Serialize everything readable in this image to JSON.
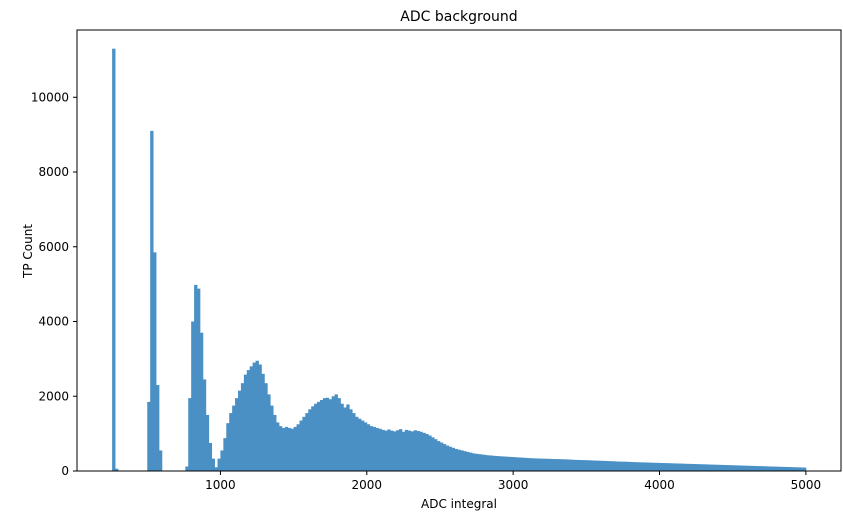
{
  "chart_data": {
    "type": "bar",
    "title": "ADC background",
    "xlabel": "ADC integral",
    "ylabel": "TP Count",
    "xlim": [
      20,
      5240
    ],
    "ylim": [
      0,
      11800
    ],
    "xticks": [
      1000,
      2000,
      3000,
      4000,
      5000
    ],
    "yticks": [
      0,
      2000,
      4000,
      6000,
      8000,
      10000
    ],
    "grid": false,
    "legend": "none",
    "bar_color": "#4a90c4",
    "bin_width": 20,
    "bins": [
      {
        "x": 260,
        "y": 11300
      },
      {
        "x": 280,
        "y": 60
      },
      {
        "x": 500,
        "y": 1850
      },
      {
        "x": 520,
        "y": 9100
      },
      {
        "x": 540,
        "y": 5850
      },
      {
        "x": 560,
        "y": 2300
      },
      {
        "x": 580,
        "y": 550
      },
      {
        "x": 760,
        "y": 120
      },
      {
        "x": 780,
        "y": 1950
      },
      {
        "x": 800,
        "y": 4000
      },
      {
        "x": 820,
        "y": 4980
      },
      {
        "x": 840,
        "y": 4880
      },
      {
        "x": 860,
        "y": 3700
      },
      {
        "x": 880,
        "y": 2450
      },
      {
        "x": 900,
        "y": 1500
      },
      {
        "x": 920,
        "y": 750
      },
      {
        "x": 940,
        "y": 330
      },
      {
        "x": 960,
        "y": 100
      },
      {
        "x": 980,
        "y": 330
      },
      {
        "x": 1000,
        "y": 550
      },
      {
        "x": 1020,
        "y": 880
      },
      {
        "x": 1040,
        "y": 1280
      },
      {
        "x": 1060,
        "y": 1550
      },
      {
        "x": 1080,
        "y": 1750
      },
      {
        "x": 1100,
        "y": 1950
      },
      {
        "x": 1120,
        "y": 2150
      },
      {
        "x": 1140,
        "y": 2350
      },
      {
        "x": 1160,
        "y": 2580
      },
      {
        "x": 1180,
        "y": 2700
      },
      {
        "x": 1200,
        "y": 2800
      },
      {
        "x": 1220,
        "y": 2900
      },
      {
        "x": 1240,
        "y": 2950
      },
      {
        "x": 1260,
        "y": 2850
      },
      {
        "x": 1280,
        "y": 2600
      },
      {
        "x": 1300,
        "y": 2350
      },
      {
        "x": 1320,
        "y": 2050
      },
      {
        "x": 1340,
        "y": 1750
      },
      {
        "x": 1360,
        "y": 1500
      },
      {
        "x": 1380,
        "y": 1300
      },
      {
        "x": 1400,
        "y": 1200
      },
      {
        "x": 1420,
        "y": 1150
      },
      {
        "x": 1440,
        "y": 1180
      },
      {
        "x": 1460,
        "y": 1150
      },
      {
        "x": 1480,
        "y": 1130
      },
      {
        "x": 1500,
        "y": 1180
      },
      {
        "x": 1520,
        "y": 1250
      },
      {
        "x": 1540,
        "y": 1350
      },
      {
        "x": 1560,
        "y": 1450
      },
      {
        "x": 1580,
        "y": 1550
      },
      {
        "x": 1600,
        "y": 1650
      },
      {
        "x": 1620,
        "y": 1730
      },
      {
        "x": 1640,
        "y": 1800
      },
      {
        "x": 1660,
        "y": 1850
      },
      {
        "x": 1680,
        "y": 1900
      },
      {
        "x": 1700,
        "y": 1950
      },
      {
        "x": 1720,
        "y": 1960
      },
      {
        "x": 1740,
        "y": 1920
      },
      {
        "x": 1760,
        "y": 2000
      },
      {
        "x": 1780,
        "y": 2050
      },
      {
        "x": 1800,
        "y": 1950
      },
      {
        "x": 1820,
        "y": 1800
      },
      {
        "x": 1840,
        "y": 1700
      },
      {
        "x": 1860,
        "y": 1780
      },
      {
        "x": 1880,
        "y": 1650
      },
      {
        "x": 1900,
        "y": 1550
      },
      {
        "x": 1920,
        "y": 1450
      },
      {
        "x": 1940,
        "y": 1400
      },
      {
        "x": 1960,
        "y": 1350
      },
      {
        "x": 1980,
        "y": 1300
      },
      {
        "x": 2000,
        "y": 1250
      },
      {
        "x": 2020,
        "y": 1200
      },
      {
        "x": 2040,
        "y": 1180
      },
      {
        "x": 2060,
        "y": 1150
      },
      {
        "x": 2080,
        "y": 1130
      },
      {
        "x": 2100,
        "y": 1100
      },
      {
        "x": 2120,
        "y": 1080
      },
      {
        "x": 2140,
        "y": 1110
      },
      {
        "x": 2160,
        "y": 1080
      },
      {
        "x": 2180,
        "y": 1060
      },
      {
        "x": 2200,
        "y": 1090
      },
      {
        "x": 2220,
        "y": 1120
      },
      {
        "x": 2240,
        "y": 1050
      },
      {
        "x": 2260,
        "y": 1100
      },
      {
        "x": 2280,
        "y": 1080
      },
      {
        "x": 2300,
        "y": 1060
      },
      {
        "x": 2320,
        "y": 1090
      },
      {
        "x": 2340,
        "y": 1070
      },
      {
        "x": 2360,
        "y": 1050
      },
      {
        "x": 2380,
        "y": 1020
      },
      {
        "x": 2400,
        "y": 990
      },
      {
        "x": 2420,
        "y": 950
      },
      {
        "x": 2440,
        "y": 900
      },
      {
        "x": 2460,
        "y": 850
      },
      {
        "x": 2480,
        "y": 800
      },
      {
        "x": 2500,
        "y": 760
      },
      {
        "x": 2520,
        "y": 720
      },
      {
        "x": 2540,
        "y": 680
      },
      {
        "x": 2560,
        "y": 650
      },
      {
        "x": 2580,
        "y": 620
      },
      {
        "x": 2600,
        "y": 590
      },
      {
        "x": 2620,
        "y": 570
      },
      {
        "x": 2640,
        "y": 550
      },
      {
        "x": 2660,
        "y": 530
      },
      {
        "x": 2680,
        "y": 510
      },
      {
        "x": 2700,
        "y": 490
      },
      {
        "x": 2720,
        "y": 470
      },
      {
        "x": 2740,
        "y": 460
      },
      {
        "x": 2760,
        "y": 450
      },
      {
        "x": 2780,
        "y": 440
      },
      {
        "x": 2800,
        "y": 430
      },
      {
        "x": 2820,
        "y": 420
      },
      {
        "x": 2840,
        "y": 415
      },
      {
        "x": 2860,
        "y": 405
      },
      {
        "x": 2880,
        "y": 400
      },
      {
        "x": 2900,
        "y": 395
      },
      {
        "x": 2920,
        "y": 390
      },
      {
        "x": 2940,
        "y": 385
      },
      {
        "x": 2960,
        "y": 380
      },
      {
        "x": 2980,
        "y": 375
      },
      {
        "x": 3000,
        "y": 370
      },
      {
        "x": 3020,
        "y": 365
      },
      {
        "x": 3040,
        "y": 360
      },
      {
        "x": 3060,
        "y": 355
      },
      {
        "x": 3080,
        "y": 350
      },
      {
        "x": 3100,
        "y": 345
      },
      {
        "x": 3120,
        "y": 340
      },
      {
        "x": 3140,
        "y": 338
      },
      {
        "x": 3160,
        "y": 335
      },
      {
        "x": 3180,
        "y": 332
      },
      {
        "x": 3200,
        "y": 330
      },
      {
        "x": 3220,
        "y": 328
      },
      {
        "x": 3240,
        "y": 325
      },
      {
        "x": 3260,
        "y": 322
      },
      {
        "x": 3280,
        "y": 320
      },
      {
        "x": 3300,
        "y": 318
      },
      {
        "x": 3320,
        "y": 315
      },
      {
        "x": 3340,
        "y": 312
      },
      {
        "x": 3360,
        "y": 310
      },
      {
        "x": 3380,
        "y": 305
      },
      {
        "x": 3400,
        "y": 300
      },
      {
        "x": 3420,
        "y": 298
      },
      {
        "x": 3440,
        "y": 295
      },
      {
        "x": 3460,
        "y": 292
      },
      {
        "x": 3480,
        "y": 290
      },
      {
        "x": 3500,
        "y": 288
      },
      {
        "x": 3520,
        "y": 285
      },
      {
        "x": 3540,
        "y": 280
      },
      {
        "x": 3560,
        "y": 278
      },
      {
        "x": 3580,
        "y": 275
      },
      {
        "x": 3600,
        "y": 272
      },
      {
        "x": 3620,
        "y": 270
      },
      {
        "x": 3640,
        "y": 265
      },
      {
        "x": 3660,
        "y": 262
      },
      {
        "x": 3680,
        "y": 260
      },
      {
        "x": 3700,
        "y": 255
      },
      {
        "x": 3720,
        "y": 252
      },
      {
        "x": 3740,
        "y": 250
      },
      {
        "x": 3760,
        "y": 248
      },
      {
        "x": 3780,
        "y": 245
      },
      {
        "x": 3800,
        "y": 240
      },
      {
        "x": 3820,
        "y": 238
      },
      {
        "x": 3840,
        "y": 235
      },
      {
        "x": 3860,
        "y": 232
      },
      {
        "x": 3880,
        "y": 230
      },
      {
        "x": 3900,
        "y": 228
      },
      {
        "x": 3920,
        "y": 225
      },
      {
        "x": 3940,
        "y": 222
      },
      {
        "x": 3960,
        "y": 220
      },
      {
        "x": 3980,
        "y": 218
      },
      {
        "x": 4000,
        "y": 215
      },
      {
        "x": 4020,
        "y": 212
      },
      {
        "x": 4040,
        "y": 210
      },
      {
        "x": 4060,
        "y": 208
      },
      {
        "x": 4080,
        "y": 205
      },
      {
        "x": 4100,
        "y": 202
      },
      {
        "x": 4120,
        "y": 200
      },
      {
        "x": 4140,
        "y": 198
      },
      {
        "x": 4160,
        "y": 195
      },
      {
        "x": 4180,
        "y": 192
      },
      {
        "x": 4200,
        "y": 190
      },
      {
        "x": 4220,
        "y": 188
      },
      {
        "x": 4240,
        "y": 185
      },
      {
        "x": 4260,
        "y": 182
      },
      {
        "x": 4280,
        "y": 180
      },
      {
        "x": 4300,
        "y": 178
      },
      {
        "x": 4320,
        "y": 175
      },
      {
        "x": 4340,
        "y": 172
      },
      {
        "x": 4360,
        "y": 170
      },
      {
        "x": 4380,
        "y": 168
      },
      {
        "x": 4400,
        "y": 165
      },
      {
        "x": 4420,
        "y": 162
      },
      {
        "x": 4440,
        "y": 160
      },
      {
        "x": 4460,
        "y": 158
      },
      {
        "x": 4480,
        "y": 155
      },
      {
        "x": 4500,
        "y": 152
      },
      {
        "x": 4520,
        "y": 150
      },
      {
        "x": 4540,
        "y": 148
      },
      {
        "x": 4560,
        "y": 145
      },
      {
        "x": 4580,
        "y": 142
      },
      {
        "x": 4600,
        "y": 140
      },
      {
        "x": 4620,
        "y": 138
      },
      {
        "x": 4640,
        "y": 135
      },
      {
        "x": 4660,
        "y": 132
      },
      {
        "x": 4680,
        "y": 130
      },
      {
        "x": 4700,
        "y": 128
      },
      {
        "x": 4720,
        "y": 125
      },
      {
        "x": 4740,
        "y": 122
      },
      {
        "x": 4760,
        "y": 120
      },
      {
        "x": 4780,
        "y": 118
      },
      {
        "x": 4800,
        "y": 115
      },
      {
        "x": 4820,
        "y": 112
      },
      {
        "x": 4840,
        "y": 110
      },
      {
        "x": 4860,
        "y": 108
      },
      {
        "x": 4880,
        "y": 105
      },
      {
        "x": 4900,
        "y": 102
      },
      {
        "x": 4920,
        "y": 100
      },
      {
        "x": 4940,
        "y": 98
      },
      {
        "x": 4960,
        "y": 95
      },
      {
        "x": 4980,
        "y": 92
      }
    ]
  }
}
